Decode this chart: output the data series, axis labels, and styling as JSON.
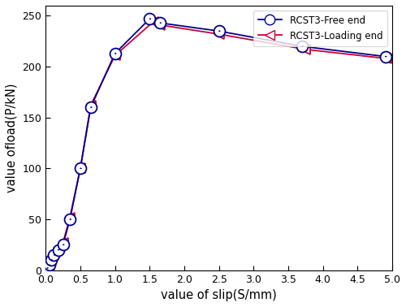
{
  "free_end_x": [
    0.02,
    0.05,
    0.08,
    0.12,
    0.18,
    0.25,
    0.35,
    0.5,
    0.65,
    1.0,
    1.5,
    1.65,
    2.5,
    3.7,
    4.9
  ],
  "free_end_y": [
    2,
    5,
    10,
    15,
    20,
    25,
    50,
    100,
    160,
    213,
    247,
    243,
    235,
    220,
    210
  ],
  "loading_end_x": [
    0.02,
    0.05,
    0.08,
    0.12,
    0.18,
    0.25,
    0.35,
    0.5,
    0.65,
    1.0,
    1.55,
    1.65,
    2.5,
    3.75,
    4.92
  ],
  "loading_end_y": [
    2,
    5,
    10,
    15,
    22,
    27,
    52,
    100,
    162,
    211,
    244,
    241,
    232,
    217,
    208
  ],
  "free_end_color": "#00008B",
  "loading_end_color": "#CC0033",
  "xlabel": "value of slip(S/mm)",
  "ylabel": "value ofload(P/kN)",
  "xlim": [
    0,
    5.0
  ],
  "ylim": [
    0,
    260
  ],
  "xticks": [
    0.0,
    0.5,
    1.0,
    1.5,
    2.0,
    2.5,
    3.0,
    3.5,
    4.0,
    4.5,
    5.0
  ],
  "yticks": [
    0,
    50,
    100,
    150,
    200,
    250
  ],
  "legend_free": "RCST3-Free end",
  "legend_loading": "RCST3-Loading end",
  "figsize": [
    5.0,
    3.78
  ],
  "dpi": 100
}
